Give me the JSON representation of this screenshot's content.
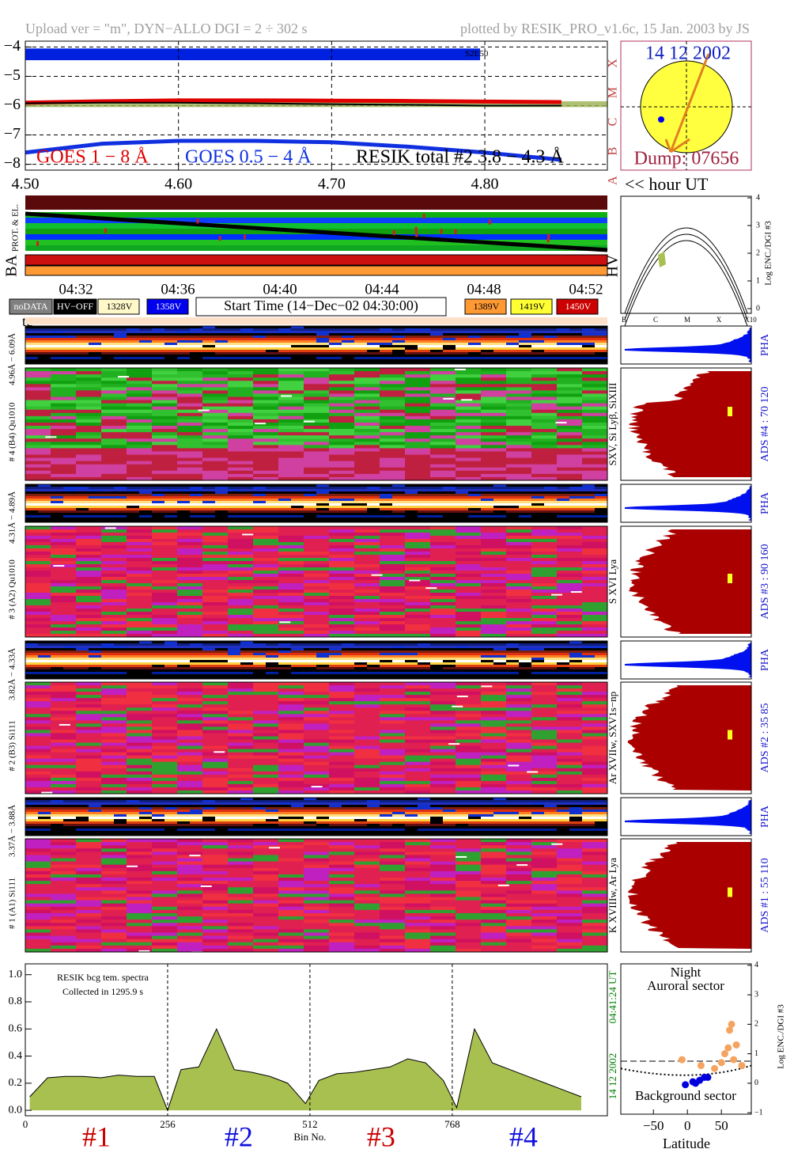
{
  "header": {
    "upload": "Upload ver = \"m\", DYN−ALLO DGI =   2 ÷ 302 s",
    "plotted": "plotted by RESIK_PRO_v1.6c, 15 Jan. 2003 by JS"
  },
  "sun": {
    "date": "14 12 2002",
    "dump": "Dump: 07656"
  },
  "status": {
    "rows": [
      "PROT. & EL.",
      "BA",
      "HV"
    ],
    "tc": "tc",
    "times": [
      "04:32",
      "04:36",
      "04:40",
      "04:44",
      "04:48",
      "04:52"
    ],
    "start_time": "Start Time (14−Dec−02 04:30:00)",
    "legend": [
      {
        "label": "noDATA",
        "color": "#808080"
      },
      {
        "label": "HV−OFF",
        "color": "#000000"
      },
      {
        "label": "1328V",
        "color": "#fff8c8"
      },
      {
        "label": "1358V",
        "color": "#0000ee"
      },
      {
        "label": "1389V",
        "color": "#ff9933"
      },
      {
        "label": "1419V",
        "color": "#ffff33"
      },
      {
        "label": "1450V",
        "color": "#cc0000"
      }
    ]
  },
  "hv_panel": {
    "yticks": [
      0,
      1,
      2,
      3,
      4
    ],
    "xlabels": [
      "B",
      "C",
      "M",
      "X",
      "X10"
    ],
    "ylabel": "Log ENC./DGI #3"
  },
  "channels": [
    {
      "range": "4.96Å − 6.09Å",
      "name": "# 4 (B4) Qu1010",
      "lines": "SXV, Si Lyβ, SiXIII",
      "ads": "ADS #4 :   70 120",
      "pha": "PHA"
    },
    {
      "range": "4.31Å − 4.89Å",
      "name": "# 3 (A2) Qu1010",
      "lines": "S XVI Lya",
      "ads": "ADS #3 :   90 160",
      "pha": "PHA"
    },
    {
      "range": "3.82Å − 4.33Å",
      "name": "# 2 (B3) Si111",
      "lines": "Ar XVIIw, SXV1s−np",
      "ads": "ADS #2 :   35  85",
      "pha": "PHA"
    },
    {
      "range": "3.37Å − 3.88Å",
      "name": "# 1 (A1) Si111",
      "lines": "K XVIIIw, Ar Lya",
      "ads": "ADS #1 :   55 110",
      "pha": "PHA"
    }
  ],
  "chart_data": [
    {
      "type": "line",
      "x": [
        4.5,
        4.55,
        4.6,
        4.65,
        4.7,
        4.75,
        4.8,
        4.85
      ],
      "series": [
        {
          "name": "GOES 1 − 8 Å",
          "color": "#e00000",
          "values": [
            -5.9,
            -5.85,
            -5.82,
            -5.82,
            -5.83,
            -5.84,
            -5.86,
            -5.88
          ]
        },
        {
          "name": "GOES 0.5 − 4 Å",
          "color": "#1030e0",
          "values": [
            -7.6,
            -7.3,
            -7.2,
            -7.2,
            -7.25,
            -7.4,
            -7.6,
            -7.85
          ]
        },
        {
          "name": "RESIK total #2  3.8 − 4.3 Å",
          "color": "#000000",
          "values": [
            -5.92,
            -5.9,
            -5.9,
            -5.92,
            -5.95,
            -5.97,
            -6.0,
            -6.0
          ]
        }
      ],
      "xlim": [
        4.5,
        4.88
      ],
      "xticks": [
        {
          "value": 4.5,
          "label": "4.50"
        },
        {
          "value": 4.6,
          "label": "4.60"
        },
        {
          "value": 4.7,
          "label": "4.70"
        },
        {
          "value": 4.8,
          "label": "4.80"
        }
      ],
      "ylim": [
        -8.2,
        -3.8
      ],
      "yticks": [
        {
          "value": -4,
          "label": "−4"
        },
        {
          "value": -5,
          "label": "−5"
        },
        {
          "value": -6,
          "label": "−6"
        },
        {
          "value": -7,
          "label": "−7"
        },
        {
          "value": -8,
          "label": "−8"
        }
      ],
      "grid": true,
      "class_labels": [
        "X",
        "M",
        "C",
        "B",
        "A"
      ],
      "annotation": "S2E50",
      "xlabel": "<< hour UT"
    },
    {
      "type": "area",
      "title": "RESIK bcg tem. spectra",
      "subtitle": "Collected in  1295.9 s",
      "x": [
        8,
        40,
        72,
        104,
        136,
        168,
        200,
        232,
        256,
        280,
        312,
        344,
        376,
        408,
        440,
        472,
        504,
        528,
        560,
        592,
        624,
        656,
        688,
        720,
        752,
        776,
        808,
        840,
        872,
        904,
        936,
        968,
        1000
      ],
      "values": [
        0.1,
        0.24,
        0.25,
        0.25,
        0.24,
        0.26,
        0.25,
        0.25,
        0.0,
        0.3,
        0.32,
        0.6,
        0.3,
        0.28,
        0.25,
        0.2,
        0.05,
        0.22,
        0.27,
        0.28,
        0.3,
        0.32,
        0.38,
        0.35,
        0.22,
        0.02,
        0.6,
        0.35,
        0.3,
        0.25,
        0.2,
        0.15,
        0.1
      ],
      "color": "#a8c050",
      "xlim": [
        0,
        1047
      ],
      "xticks": [
        0,
        256,
        512,
        768
      ],
      "ylim": [
        -0.04,
        1.08
      ],
      "yticks": [
        {
          "value": 0,
          "label": "0.0"
        },
        {
          "value": 0.2,
          "label": "0.2"
        },
        {
          "value": 0.4,
          "label": "0.4"
        },
        {
          "value": 0.6,
          "label": "0.6"
        },
        {
          "value": 0.8,
          "label": "0.8"
        },
        {
          "value": 1,
          "label": "1.0"
        }
      ],
      "xlabel": "Bin No.",
      "side_labels": [
        "14 12 2002",
        "04:41:24 UT"
      ],
      "segment_labels": [
        {
          "label": "#1",
          "color": "#cc0000"
        },
        {
          "label": "#2",
          "color": "#1010dd"
        },
        {
          "label": "#3",
          "color": "#cc0000"
        },
        {
          "label": "#4",
          "color": "#1010dd"
        }
      ]
    },
    {
      "type": "scatter",
      "series": [
        {
          "color": "#f4a460",
          "x": [
            -8,
            20,
            40,
            50,
            55,
            60,
            62,
            65,
            68,
            72,
            80
          ],
          "values": [
            0.8,
            0.6,
            0.5,
            0.7,
            1.0,
            1.2,
            1.8,
            2.0,
            0.8,
            1.3,
            0.6
          ]
        },
        {
          "color": "#0000dd",
          "x": [
            -3,
            8,
            12,
            18,
            25,
            30
          ],
          "values": [
            -0.05,
            0.05,
            0.0,
            0.1,
            0.2,
            0.2
          ]
        }
      ],
      "threshold": 0.75,
      "xlim": [
        -98,
        94
      ],
      "xticks": [
        {
          "value": -50,
          "label": "−50"
        },
        0,
        50
      ],
      "ylim": [
        -1.05,
        4.05
      ],
      "yticks": [
        {
          "value": -1,
          "label": "−1"
        },
        0,
        1,
        2,
        3,
        4
      ],
      "xlabel": "Latitude",
      "ylabel": "Log ENC./DGI #3",
      "annotations": [
        "Night",
        "Auroral sector",
        "Background sector"
      ]
    }
  ]
}
